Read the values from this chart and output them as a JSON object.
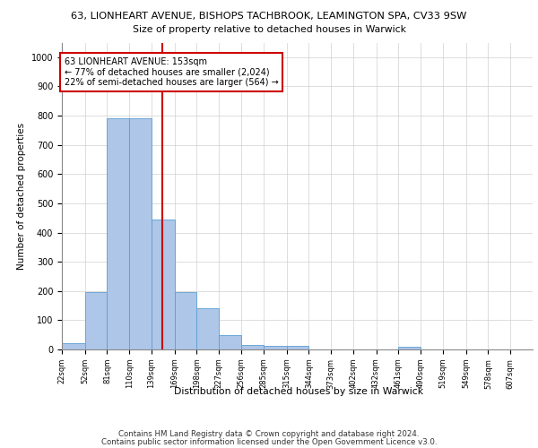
{
  "title_line1": "63, LIONHEART AVENUE, BISHOPS TACHBROOK, LEAMINGTON SPA, CV33 9SW",
  "title_line2": "Size of property relative to detached houses in Warwick",
  "xlabel": "Distribution of detached houses by size in Warwick",
  "ylabel": "Number of detached properties",
  "bar_values": [
    20,
    195,
    790,
    790,
    445,
    195,
    140,
    50,
    15,
    12,
    12,
    0,
    0,
    0,
    0,
    10,
    0,
    0,
    0,
    0,
    0
  ],
  "bin_labels": [
    "22sqm",
    "52sqm",
    "81sqm",
    "110sqm",
    "139sqm",
    "169sqm",
    "198sqm",
    "227sqm",
    "256sqm",
    "285sqm",
    "315sqm",
    "344sqm",
    "373sqm",
    "402sqm",
    "432sqm",
    "461sqm",
    "490sqm",
    "519sqm",
    "549sqm",
    "578sqm",
    "607sqm"
  ],
  "bin_edges": [
    22,
    52,
    81,
    110,
    139,
    169,
    198,
    227,
    256,
    285,
    315,
    344,
    373,
    402,
    432,
    461,
    490,
    519,
    549,
    578,
    607,
    636
  ],
  "bar_color": "#aec6e8",
  "bar_edgecolor": "#5a9fd4",
  "vline_x": 153,
  "vline_color": "#cc0000",
  "ylim": [
    0,
    1050
  ],
  "yticks": [
    0,
    100,
    200,
    300,
    400,
    500,
    600,
    700,
    800,
    900,
    1000
  ],
  "annotation_text": "63 LIONHEART AVENUE: 153sqm\n← 77% of detached houses are smaller (2,024)\n22% of semi-detached houses are larger (564) →",
  "annotation_box_color": "#ffffff",
  "annotation_box_edgecolor": "#cc0000",
  "footer_line1": "Contains HM Land Registry data © Crown copyright and database right 2024.",
  "footer_line2": "Contains public sector information licensed under the Open Government Licence v3.0.",
  "background_color": "#ffffff",
  "grid_color": "#d0d0d0"
}
